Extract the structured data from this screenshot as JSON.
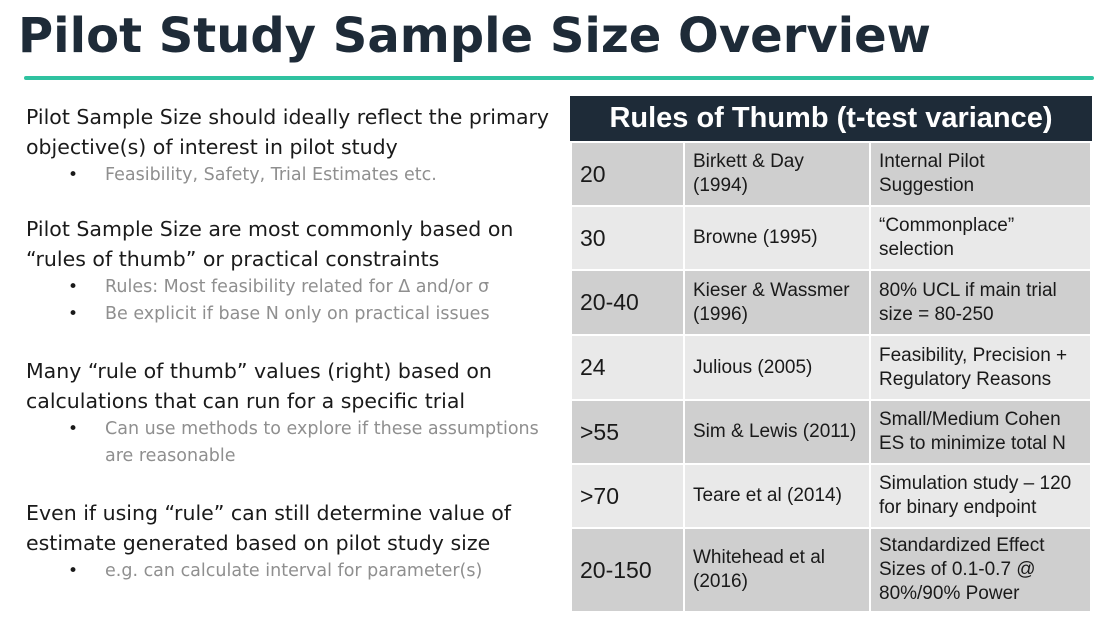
{
  "slide": {
    "title": "Pilot Study Sample Size Overview"
  },
  "sections": [
    {
      "heading": "Pilot Sample Size should ideally reflect the primary objective(s) of interest in pilot study",
      "bullets": [
        "Feasibility, Safety, Trial Estimates etc."
      ]
    },
    {
      "heading": "Pilot Sample Size are most commonly based on “rules of thumb” or practical constraints",
      "bullets": [
        "Rules: Most feasibility related for Δ and/or σ",
        "Be explicit if base N only on practical issues"
      ]
    },
    {
      "heading": "Many “rule of thumb” values (right) based on calculations that can run for a specific trial",
      "bullets": [
        "Can use methods to explore if these assumptions are reasonable"
      ]
    },
    {
      "heading": "Even if using “rule” can still determine value of estimate generated based on pilot study size",
      "bullets": [
        "e.g. can calculate interval for parameter(s)"
      ]
    }
  ],
  "table": {
    "header": "Rules of Thumb (t-test variance)",
    "rows": [
      {
        "n": "20",
        "source": "Birkett & Day (1994)",
        "reason": "Internal Pilot Suggestion"
      },
      {
        "n": "30",
        "source": "Browne (1995)",
        "reason": "“Commonplace” selection"
      },
      {
        "n": "20-40",
        "source": "Kieser & Wassmer (1996)",
        "reason": "80% UCL if main trial size = 80-250"
      },
      {
        "n": "24",
        "source": "Julious (2005)",
        "reason": "Feasibility, Precision + Regulatory Reasons"
      },
      {
        "n": ">55",
        "source": "Sim & Lewis (2011)",
        "reason": "Small/Medium Cohen ES to minimize total N"
      },
      {
        "n": ">70",
        "source": "Teare et al (2014)",
        "reason": "Simulation study – 120 for binary endpoint"
      },
      {
        "n": "20-150",
        "source": "Whitehead et al (2016)",
        "reason": "Standardized Effect Sizes of 0.1-0.7 @ 80%/90% Power"
      }
    ]
  },
  "colors": {
    "title_text": "#1e2b38",
    "accent_rule": "#2fc2a0",
    "table_header_bg": "#1e2b38",
    "row_dark": "#cfcfcf",
    "row_light": "#e9e9e9",
    "bullet_text": "#8f8f8f"
  }
}
